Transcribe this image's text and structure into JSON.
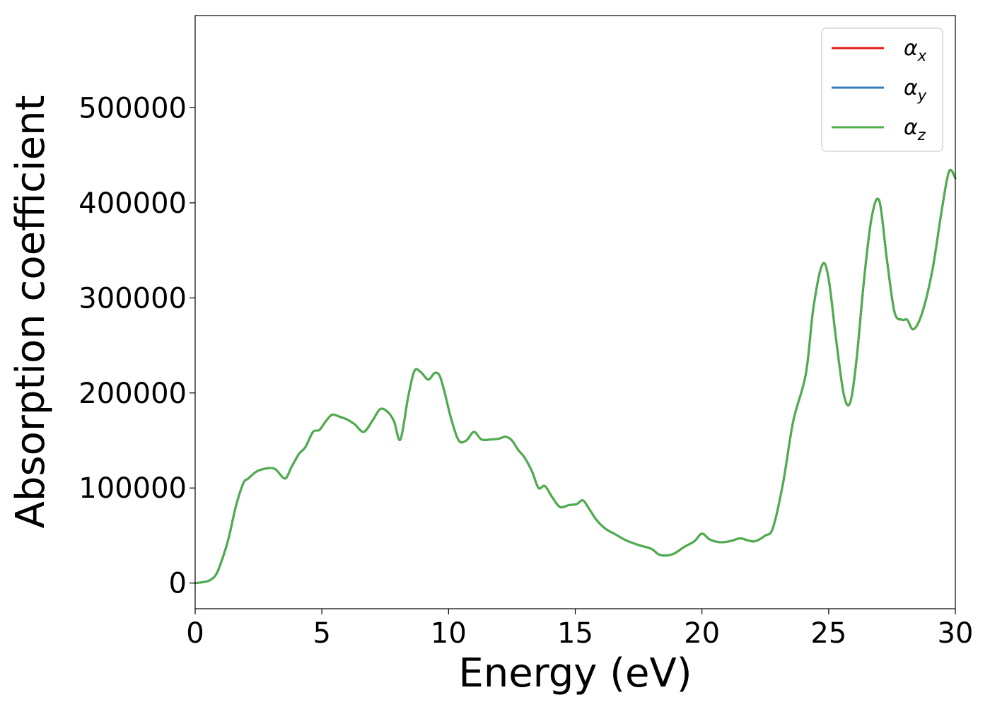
{
  "chart_data": {
    "type": "line",
    "xlabel": "Energy (eV)",
    "ylabel": "Absorption coefficient",
    "xlim": [
      0,
      30
    ],
    "ylim": [
      -27000,
      597000
    ],
    "xticks": [
      0,
      5,
      10,
      15,
      20,
      25,
      30
    ],
    "xtick_labels": [
      "0",
      "5",
      "10",
      "15",
      "20",
      "25",
      "30"
    ],
    "yticks": [
      0,
      100000,
      200000,
      300000,
      400000,
      500000
    ],
    "ytick_labels": [
      "0",
      "100000",
      "200000",
      "300000",
      "400000",
      "500000"
    ],
    "grid": false,
    "legend_position": "top-right",
    "x": [
      0,
      0.5,
      0.8,
      1.0,
      1.3,
      1.6,
      1.9,
      2.1,
      2.4,
      2.7,
      3.0,
      3.2,
      3.55,
      3.8,
      4.1,
      4.35,
      4.65,
      4.9,
      5.15,
      5.4,
      5.7,
      6.0,
      6.3,
      6.65,
      7.0,
      7.3,
      7.6,
      7.85,
      8.1,
      8.4,
      8.65,
      8.9,
      9.2,
      9.45,
      9.65,
      9.85,
      10.1,
      10.4,
      10.7,
      11.0,
      11.3,
      11.65,
      12.0,
      12.25,
      12.5,
      12.75,
      13.0,
      13.3,
      13.55,
      13.8,
      14.1,
      14.4,
      14.75,
      15.05,
      15.3,
      15.55,
      15.85,
      16.2,
      16.6,
      17.0,
      17.5,
      18.0,
      18.3,
      18.6,
      18.9,
      19.3,
      19.7,
      20.0,
      20.3,
      20.7,
      21.1,
      21.5,
      21.8,
      22.1,
      22.5,
      22.8,
      23.2,
      23.6,
      24.1,
      24.4,
      24.75,
      25.0,
      25.3,
      25.6,
      25.85,
      26.1,
      26.4,
      26.7,
      27.0,
      27.3,
      27.6,
      27.9,
      28.1,
      28.35,
      28.7,
      29.1,
      29.45,
      29.75,
      30.0
    ],
    "series": [
      {
        "name": "x",
        "color": "#e41a1c",
        "values": [
          0,
          2000,
          8000,
          20000,
          45000,
          80000,
          105000,
          110000,
          117000,
          120000,
          121000,
          119000,
          110000,
          122000,
          136000,
          143000,
          159000,
          161000,
          170000,
          177000,
          175000,
          172000,
          167000,
          159000,
          171000,
          183000,
          180000,
          170000,
          151000,
          195000,
          223000,
          222000,
          214000,
          221000,
          218000,
          200000,
          173000,
          150000,
          150000,
          159000,
          151000,
          151000,
          152000,
          154000,
          150000,
          140000,
          132000,
          117000,
          100000,
          102000,
          90000,
          80000,
          82000,
          83000,
          87000,
          78000,
          66000,
          57000,
          51000,
          45000,
          40000,
          36000,
          30000,
          29000,
          31000,
          38000,
          44000,
          52000,
          46000,
          43000,
          44000,
          47000,
          45000,
          44000,
          50000,
          58000,
          105000,
          170000,
          220000,
          290000,
          335000,
          320000,
          255000,
          198000,
          190000,
          235000,
          320000,
          385000,
          402000,
          340000,
          285000,
          277000,
          277000,
          267000,
          285000,
          330000,
          390000,
          433000,
          426000
        ]
      },
      {
        "name": "y",
        "color": "#377eb8",
        "values": [
          0,
          2000,
          8000,
          20000,
          45000,
          80000,
          105000,
          110000,
          117000,
          120000,
          121000,
          119000,
          110000,
          122000,
          136000,
          143000,
          159000,
          161000,
          170000,
          177000,
          175000,
          172000,
          167000,
          159000,
          171000,
          183000,
          180000,
          170000,
          151000,
          195000,
          223000,
          222000,
          214000,
          221000,
          218000,
          200000,
          173000,
          150000,
          150000,
          159000,
          151000,
          151000,
          152000,
          154000,
          150000,
          140000,
          132000,
          117000,
          100000,
          102000,
          90000,
          80000,
          82000,
          83000,
          87000,
          78000,
          66000,
          57000,
          51000,
          45000,
          40000,
          36000,
          30000,
          29000,
          31000,
          38000,
          44000,
          52000,
          46000,
          43000,
          44000,
          47000,
          45000,
          44000,
          50000,
          58000,
          105000,
          170000,
          220000,
          290000,
          335000,
          320000,
          255000,
          198000,
          190000,
          235000,
          320000,
          385000,
          402000,
          340000,
          285000,
          277000,
          277000,
          267000,
          285000,
          330000,
          390000,
          433000,
          426000
        ]
      },
      {
        "name": "z",
        "color": "#4daf4a",
        "values": [
          0,
          2000,
          8000,
          20000,
          45000,
          80000,
          105000,
          110000,
          117000,
          120000,
          121000,
          119000,
          110000,
          122000,
          136000,
          143000,
          159000,
          161000,
          170000,
          177000,
          175000,
          172000,
          167000,
          159000,
          171000,
          183000,
          180000,
          170000,
          151000,
          195000,
          223000,
          222000,
          214000,
          221000,
          218000,
          200000,
          173000,
          150000,
          150000,
          159000,
          151000,
          151000,
          152000,
          154000,
          150000,
          140000,
          132000,
          117000,
          100000,
          102000,
          90000,
          80000,
          82000,
          83000,
          87000,
          78000,
          66000,
          57000,
          51000,
          45000,
          40000,
          36000,
          30000,
          29000,
          31000,
          38000,
          44000,
          52000,
          46000,
          43000,
          44000,
          47000,
          45000,
          44000,
          50000,
          58000,
          105000,
          170000,
          220000,
          290000,
          335000,
          320000,
          255000,
          198000,
          190000,
          235000,
          320000,
          385000,
          402000,
          340000,
          285000,
          277000,
          277000,
          267000,
          285000,
          330000,
          390000,
          433000,
          426000
        ]
      }
    ],
    "legend": [
      {
        "symbol": "α",
        "subscript": "x",
        "color": "#e41a1c"
      },
      {
        "symbol": "α",
        "subscript": "y",
        "color": "#377eb8"
      },
      {
        "symbol": "α",
        "subscript": "z",
        "color": "#4daf4a"
      }
    ]
  }
}
